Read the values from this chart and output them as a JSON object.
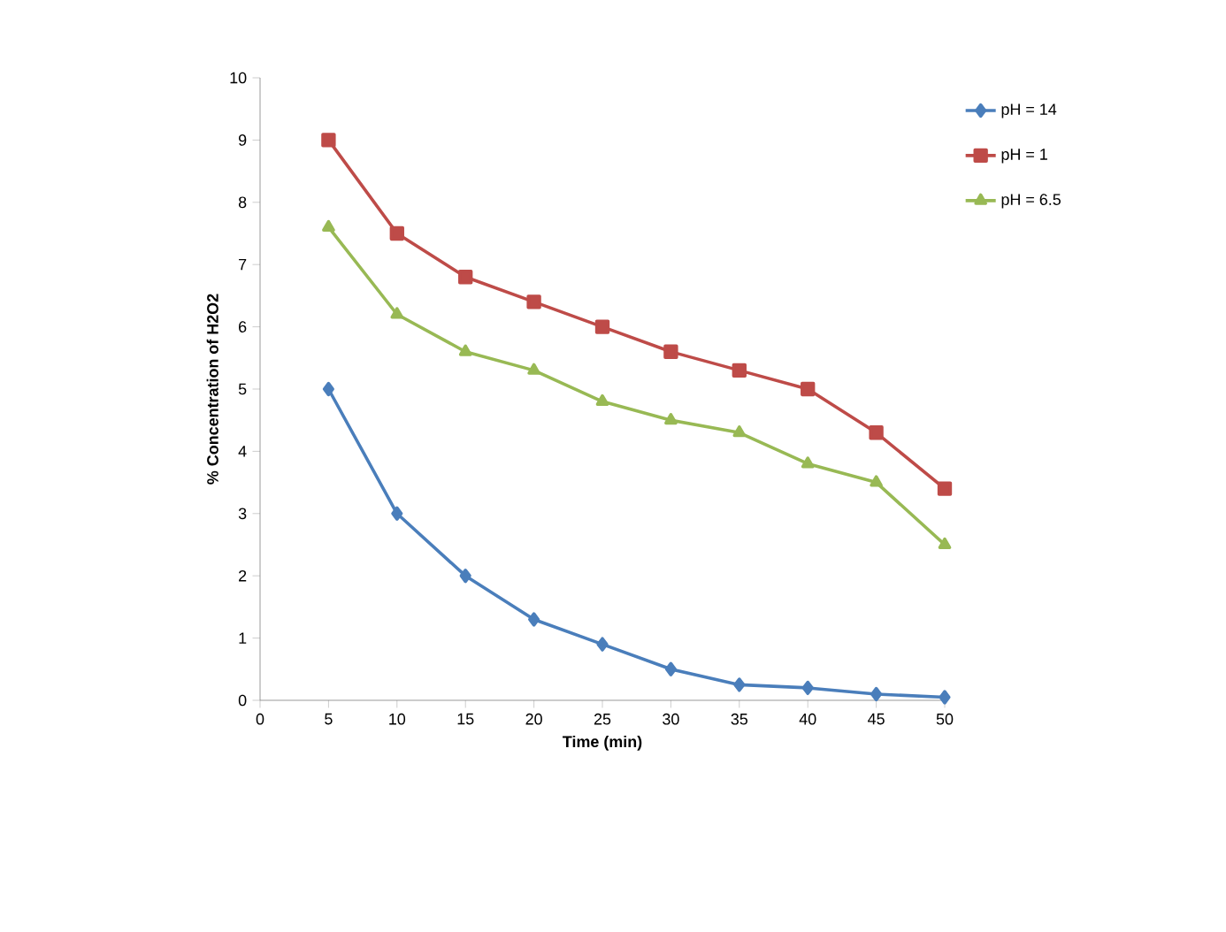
{
  "chart_data": {
    "type": "line",
    "xlabel": "Time (min)",
    "ylabel": "% Concentration of H2O2",
    "x": [
      5,
      10,
      15,
      20,
      25,
      30,
      35,
      40,
      45,
      50
    ],
    "xlim": [
      0,
      50
    ],
    "xticks": [
      0,
      5,
      10,
      15,
      20,
      25,
      30,
      35,
      40,
      45,
      50
    ],
    "ylim": [
      0,
      10
    ],
    "yticks": [
      0,
      1,
      2,
      3,
      4,
      5,
      6,
      7,
      8,
      9,
      10
    ],
    "grid": false,
    "legend": "top right",
    "line_style": "solid",
    "series": [
      {
        "name": "pH = 14",
        "color": "#4a7ebb",
        "marker": "diamond",
        "values": [
          5,
          3,
          2,
          1.3,
          0.9,
          0.5,
          0.25,
          0.2,
          0.1,
          0.05
        ]
      },
      {
        "name": "pH = 1",
        "color": "#be4b48",
        "marker": "square",
        "values": [
          9,
          7.5,
          6.8,
          6.4,
          6,
          5.6,
          5.3,
          5,
          4.3,
          3.4
        ]
      },
      {
        "name": "pH = 6.5",
        "color": "#98b954",
        "marker": "triangle",
        "values": [
          7.6,
          6.2,
          5.6,
          5.3,
          4.8,
          4.5,
          4.3,
          3.8,
          3.5,
          2.5
        ]
      }
    ]
  }
}
